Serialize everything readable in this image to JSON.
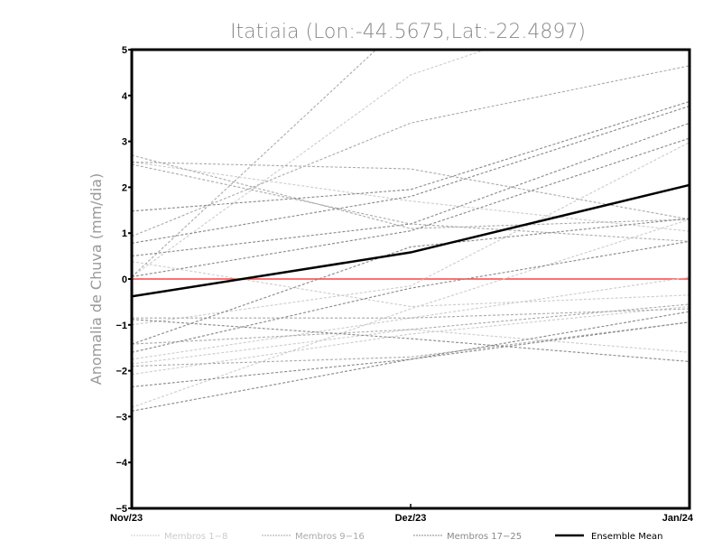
{
  "chart_data": {
    "type": "line",
    "title": "Itatiaia (Lon:-44.5675,Lat:-22.4897)",
    "xlabel": "",
    "ylabel": "Anomalia de Chuva (mm/dia)",
    "categories": [
      "Nov/23",
      "Dez/23",
      "Jan/24"
    ],
    "ylim": [
      -5,
      5
    ],
    "yticks": [
      "5",
      "4",
      "3",
      "2",
      "1",
      "0",
      "-1",
      "-2",
      "-3",
      "-4",
      "-5"
    ],
    "zero_line_color": "#ff4444",
    "legend_position": "bottom",
    "groups": [
      {
        "name": "Membros 1-8",
        "color": "#cccccc",
        "series": [
          [
            0.05,
            4.45,
            6.5
          ],
          [
            2.55,
            1.7,
            1.04
          ],
          [
            0.38,
            -0.6,
            -0.35
          ],
          [
            -1.0,
            -0.15,
            2.98
          ],
          [
            -1.75,
            -0.85,
            0.04
          ],
          [
            -2.08,
            -1.2,
            -0.6
          ],
          [
            -2.8,
            -0.65,
            1.3
          ],
          [
            -1.85,
            -1.1,
            -1.6
          ]
        ]
      },
      {
        "name": "Membros 9-16",
        "color": "#aaaaaa",
        "series": [
          [
            0.05,
            5.7,
            7.5
          ],
          [
            0.93,
            3.4,
            4.65
          ],
          [
            2.7,
            1.1,
            1.3
          ],
          [
            2.55,
            2.4,
            1.3
          ],
          [
            2.5,
            1.2,
            0.82
          ],
          [
            -0.85,
            -0.85,
            -0.65
          ],
          [
            -1.42,
            -1.1,
            -0.55
          ],
          [
            -1.9,
            -1.7,
            -0.94
          ]
        ]
      },
      {
        "name": "Membros 17-25",
        "color": "#888888",
        "series": [
          [
            1.48,
            1.95,
            3.87
          ],
          [
            0.78,
            1.8,
            3.77
          ],
          [
            0.5,
            1.2,
            3.4
          ],
          [
            0.05,
            1.05,
            3.07
          ],
          [
            -1.42,
            0.7,
            1.32
          ],
          [
            -1.6,
            -0.2,
            0.82
          ],
          [
            -0.88,
            -1.3,
            -1.8
          ],
          [
            -2.35,
            -1.75,
            -0.71
          ],
          [
            -2.88,
            -1.75,
            -0.94
          ]
        ]
      }
    ],
    "mean": {
      "name": "Ensemble Mean",
      "color": "#000000",
      "values": [
        -0.38,
        0.58,
        2.05
      ]
    }
  }
}
